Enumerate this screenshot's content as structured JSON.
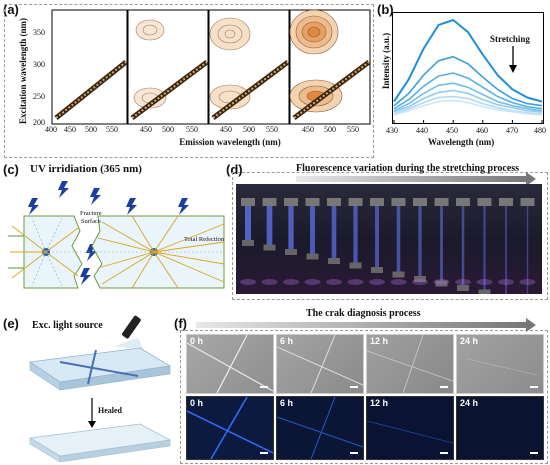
{
  "panels": {
    "a": {
      "label": "(a)",
      "ylabel": "Excitation wavelength (nm)",
      "xlabel": "Emission wavelength (nm)",
      "yticks": [
        "200",
        "250",
        "300",
        "350"
      ],
      "xticks_first": [
        "400",
        "450",
        "500",
        "550"
      ],
      "xticks_other": [
        "450",
        "500",
        "550"
      ]
    },
    "b": {
      "label": "(b)",
      "annotation": "Stretching",
      "ylabel": "Intensity (a.u.)",
      "xlabel": "Wavelength (nm)",
      "xticks": [
        "430",
        "440",
        "450",
        "460",
        "470",
        "480"
      ]
    },
    "c": {
      "label": "(c)",
      "title": "UV irridiation (365 nm)",
      "fracture_label": "Fracture\nSurface",
      "reflection_label": "Total Refection"
    },
    "d": {
      "label": "(d)",
      "title": "Fluorescence variation during the stretching process"
    },
    "e": {
      "label": "(e)",
      "source_label": "Exc. light source",
      "healed_label": "Healed"
    },
    "f": {
      "label": "(f)",
      "title": "The crak diagnosis process",
      "times": [
        "0 h",
        "6 h",
        "12 h",
        "24 h"
      ]
    }
  },
  "chart_data": {
    "type": "line",
    "x": [
      430,
      435,
      440,
      445,
      450,
      455,
      460,
      465,
      470,
      475,
      480
    ],
    "xlabel": "Wavelength (nm)",
    "ylabel": "Intensity (a.u.)",
    "xlim": [
      430,
      480
    ],
    "series": [
      {
        "values": [
          0.2,
          0.42,
          0.72,
          0.95,
          1.0,
          0.88,
          0.66,
          0.46,
          0.32,
          0.24,
          0.2
        ]
      },
      {
        "values": [
          0.16,
          0.28,
          0.46,
          0.6,
          0.64,
          0.57,
          0.44,
          0.32,
          0.23,
          0.18,
          0.16
        ]
      },
      {
        "values": [
          0.13,
          0.22,
          0.35,
          0.45,
          0.48,
          0.43,
          0.34,
          0.25,
          0.19,
          0.15,
          0.13
        ]
      },
      {
        "values": [
          0.11,
          0.18,
          0.28,
          0.36,
          0.38,
          0.34,
          0.27,
          0.2,
          0.16,
          0.13,
          0.11
        ]
      },
      {
        "values": [
          0.1,
          0.15,
          0.23,
          0.29,
          0.31,
          0.28,
          0.22,
          0.17,
          0.14,
          0.11,
          0.1
        ]
      },
      {
        "values": [
          0.08,
          0.13,
          0.19,
          0.24,
          0.25,
          0.23,
          0.18,
          0.14,
          0.11,
          0.09,
          0.08
        ]
      },
      {
        "values": [
          0.07,
          0.11,
          0.16,
          0.2,
          0.21,
          0.19,
          0.15,
          0.12,
          0.1,
          0.08,
          0.07
        ]
      }
    ],
    "colors": [
      "#1f8fd6",
      "#3a9fdc",
      "#58afe2",
      "#76bee8",
      "#93ccee",
      "#b0daf3",
      "#cce7f8"
    ]
  }
}
